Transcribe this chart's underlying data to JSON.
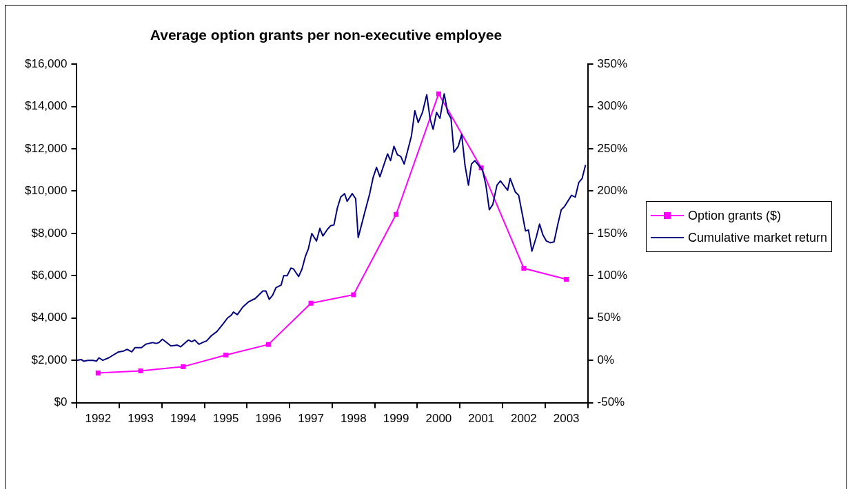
{
  "chart_data": {
    "type": "line",
    "title": "Average option grants per non-executive employee",
    "xlim": [
      1992,
      2004
    ],
    "xticks": [
      {
        "value": 1992,
        "label": null
      },
      {
        "value": 1992.5,
        "label": "1992"
      },
      {
        "value": 1993,
        "label": null
      },
      {
        "value": 1993.5,
        "label": "1993"
      },
      {
        "value": 1994,
        "label": null
      },
      {
        "value": 1994.5,
        "label": "1994"
      },
      {
        "value": 1995,
        "label": null
      },
      {
        "value": 1995.5,
        "label": "1995"
      },
      {
        "value": 1996,
        "label": null
      },
      {
        "value": 1996.5,
        "label": "1996"
      },
      {
        "value": 1997,
        "label": null
      },
      {
        "value": 1997.5,
        "label": "1997"
      },
      {
        "value": 1998,
        "label": null
      },
      {
        "value": 1998.5,
        "label": "1998"
      },
      {
        "value": 1999,
        "label": null
      },
      {
        "value": 1999.5,
        "label": "1999"
      },
      {
        "value": 2000,
        "label": null
      },
      {
        "value": 2000.5,
        "label": "2000"
      },
      {
        "value": 2001,
        "label": null
      },
      {
        "value": 2001.5,
        "label": "2001"
      },
      {
        "value": 2002,
        "label": null
      },
      {
        "value": 2002.5,
        "label": "2002"
      },
      {
        "value": 2003,
        "label": null
      },
      {
        "value": 2003.5,
        "label": "2003"
      },
      {
        "value": 2004,
        "label": null
      }
    ],
    "ylim": [
      0,
      16000
    ],
    "yticks": [
      {
        "value": 0,
        "label": "$0"
      },
      {
        "value": 2000,
        "label": "$2,000"
      },
      {
        "value": 4000,
        "label": "$4,000"
      },
      {
        "value": 6000,
        "label": "$6,000"
      },
      {
        "value": 8000,
        "label": "$8,000"
      },
      {
        "value": 10000,
        "label": "$10,000"
      },
      {
        "value": 12000,
        "label": "$12,000"
      },
      {
        "value": 14000,
        "label": "$14,000"
      },
      {
        "value": 16000,
        "label": "$16,000"
      }
    ],
    "y2lim": [
      -50,
      350
    ],
    "y2ticks": [
      {
        "value": -50,
        "label": "-50%"
      },
      {
        "value": 0,
        "label": "0%"
      },
      {
        "value": 50,
        "label": "50%"
      },
      {
        "value": 100,
        "label": "100%"
      },
      {
        "value": 150,
        "label": "150%"
      },
      {
        "value": 200,
        "label": "200%"
      },
      {
        "value": 250,
        "label": "250%"
      },
      {
        "value": 300,
        "label": "300%"
      },
      {
        "value": 350,
        "label": "350%"
      }
    ],
    "grid": false,
    "legend": "right",
    "marker": "square",
    "series": [
      {
        "name": "Option grants ($)",
        "color": "#ff00ff",
        "x": [
          1992.5,
          1993.5,
          1994.5,
          1995.5,
          1996.5,
          1997.5,
          1998.5,
          1999.5,
          2000.5,
          2001.5,
          2002.5,
          2003.5
        ],
        "values": [
          1400,
          1500,
          1700,
          2250,
          2750,
          4700,
          5100,
          8900,
          14600,
          11100,
          6350,
          5830
        ]
      },
      {
        "name": "Cumulative market return",
        "color": "#000080",
        "marker": "none",
        "axis": "y2",
        "x": [
          1992.0,
          1992.1,
          1992.16,
          1992.26,
          1992.38,
          1992.46,
          1992.52,
          1992.61,
          1992.75,
          1992.98,
          1993.1,
          1993.18,
          1993.29,
          1993.37,
          1993.52,
          1993.62,
          1993.78,
          1993.87,
          1993.93,
          1994.01,
          1994.21,
          1994.36,
          1994.44,
          1994.62,
          1994.7,
          1994.77,
          1994.87,
          1994.95,
          1995.05,
          1995.16,
          1995.29,
          1995.37,
          1995.45,
          1995.54,
          1995.62,
          1995.68,
          1995.77,
          1995.9,
          1996.03,
          1996.19,
          1996.37,
          1996.44,
          1996.52,
          1996.6,
          1996.68,
          1996.8,
          1996.86,
          1996.94,
          1997.03,
          1997.09,
          1997.21,
          1997.29,
          1997.37,
          1997.44,
          1997.52,
          1997.63,
          1997.71,
          1997.78,
          1997.89,
          1997.96,
          1998.04,
          1998.12,
          1998.2,
          1998.29,
          1998.35,
          1998.47,
          1998.55,
          1998.61,
          1998.78,
          1998.88,
          1998.96,
          1999.04,
          1999.12,
          1999.3,
          1999.37,
          1999.45,
          1999.53,
          1999.61,
          1999.69,
          1999.86,
          1999.94,
          2000.02,
          2000.12,
          2000.22,
          2000.3,
          2000.37,
          2000.45,
          2000.53,
          2000.63,
          2000.71,
          2000.79,
          2000.86,
          2000.96,
          2001.04,
          2001.12,
          2001.2,
          2001.27,
          2001.35,
          2001.53,
          2001.61,
          2001.69,
          2001.77,
          2001.87,
          2001.95,
          2002.12,
          2002.18,
          2002.3,
          2002.38,
          2002.54,
          2002.61,
          2002.69,
          2002.79,
          2002.87,
          2002.95,
          2003.03,
          2003.12,
          2003.21,
          2003.3,
          2003.38,
          2003.46,
          2003.62,
          2003.71,
          2003.79,
          2003.87,
          2003.95
        ],
        "values": [
          0,
          1,
          -1,
          0,
          0,
          -1,
          3,
          0,
          3,
          10,
          11,
          13,
          10,
          15,
          15,
          19,
          21,
          20,
          21,
          25,
          17,
          18,
          16,
          24,
          22,
          24,
          19,
          21,
          23,
          29,
          34,
          39,
          44,
          50,
          53,
          57,
          54,
          63,
          69,
          73,
          82,
          82,
          72,
          77,
          86,
          89,
          100,
          100,
          109,
          108,
          99,
          108,
          123,
          132,
          150,
          141,
          156,
          147,
          155,
          159,
          160,
          180,
          193,
          197,
          188,
          197,
          191,
          145,
          178,
          197,
          216,
          228,
          217,
          244,
          236,
          253,
          243,
          241,
          232,
          265,
          295,
          281,
          293,
          314,
          285,
          273,
          293,
          286,
          315,
          293,
          286,
          246,
          253,
          267,
          230,
          207,
          232,
          236,
          225,
          207,
          178,
          184,
          207,
          212,
          201,
          215,
          199,
          195,
          153,
          154,
          129,
          145,
          161,
          148,
          141,
          139,
          140,
          161,
          178,
          182,
          195,
          193,
          210,
          215,
          231
        ]
      }
    ]
  }
}
